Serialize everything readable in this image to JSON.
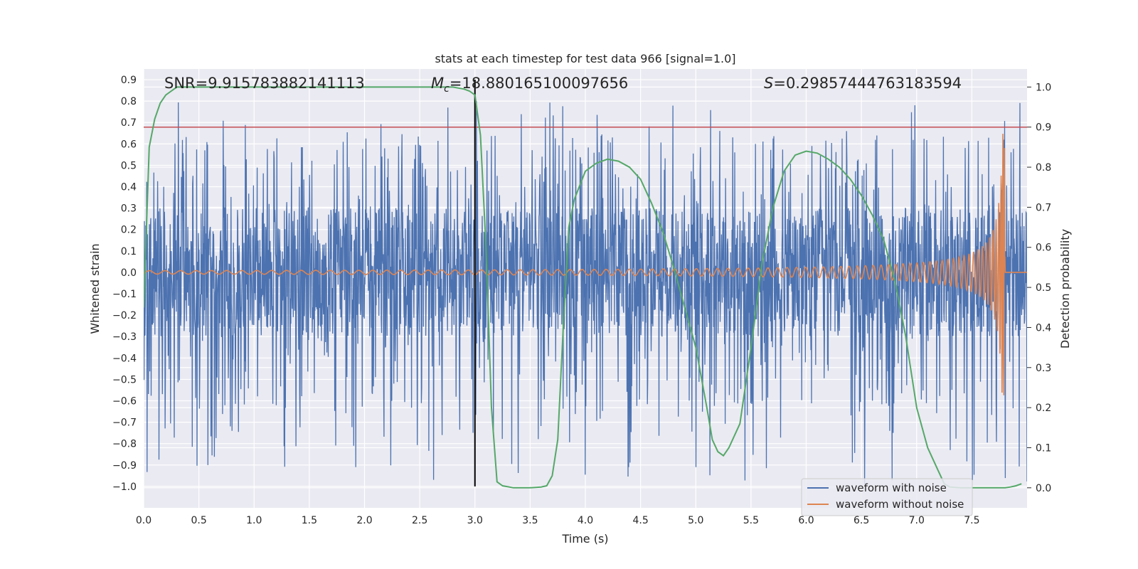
{
  "chart_data": {
    "type": "line",
    "title": "stats at each timestep for test data 966 [signal=1.0]",
    "xlabel": "Time (s)",
    "ylabel_left": "Whitened strain",
    "ylabel_right": "Detection probability",
    "xlim": [
      0.0,
      8.0
    ],
    "ylim_left": [
      -1.1,
      0.95
    ],
    "ylim_right": [
      -0.05,
      1.045
    ],
    "x_ticks": [
      "0.0",
      "0.5",
      "1.0",
      "1.5",
      "2.0",
      "2.5",
      "3.0",
      "3.5",
      "4.0",
      "4.5",
      "5.0",
      "5.5",
      "6.0",
      "6.5",
      "7.0",
      "7.5"
    ],
    "x_tick_values": [
      0.0,
      0.5,
      1.0,
      1.5,
      2.0,
      2.5,
      3.0,
      3.5,
      4.0,
      4.5,
      5.0,
      5.5,
      6.0,
      6.5,
      7.0,
      7.5
    ],
    "y_left_ticks": [
      "0.9",
      "0.8",
      "0.7",
      "0.6",
      "0.5",
      "0.4",
      "0.3",
      "0.2",
      "0.1",
      "0.0",
      "−0.1",
      "−0.2",
      "−0.3",
      "−0.4",
      "−0.5",
      "−0.6",
      "−0.7",
      "−0.8",
      "−0.9",
      "−1.0"
    ],
    "y_left_tick_values": [
      0.9,
      0.8,
      0.7,
      0.6,
      0.5,
      0.4,
      0.3,
      0.2,
      0.1,
      0.0,
      -0.1,
      -0.2,
      -0.3,
      -0.4,
      -0.5,
      -0.6,
      -0.7,
      -0.8,
      -0.9,
      -1.0
    ],
    "y_right_ticks": [
      "1.0",
      "0.9",
      "0.8",
      "0.7",
      "0.6",
      "0.5",
      "0.4",
      "0.3",
      "0.2",
      "0.1",
      "0.0"
    ],
    "y_right_tick_values": [
      1.0,
      0.9,
      0.8,
      0.7,
      0.6,
      0.5,
      0.4,
      0.3,
      0.2,
      0.1,
      0.0
    ],
    "annotations": {
      "snr": "SNR=9.915783882141113",
      "mc_symbol": "M",
      "mc_subscript": "c",
      "mc_value": "=18.880165100097656",
      "s_symbol": "S",
      "s_value": "=0.29857444763183594"
    },
    "threshold_line": {
      "axis": "right",
      "value": 0.9,
      "color": "#c44e52"
    },
    "vertical_marker": {
      "x": 3.0,
      "y_from": -1.0,
      "y_to": 0.9,
      "color": "#000000"
    },
    "series": [
      {
        "name": "waveform with noise",
        "axis": "left",
        "color": "#4c72b0",
        "kind": "noise",
        "x_range": [
          0.0,
          8.0
        ],
        "core_amplitude": 0.3,
        "peak_range": [
          -1.0,
          0.8
        ]
      },
      {
        "name": "waveform without noise",
        "axis": "left",
        "color": "#dd8452",
        "kind": "chirp",
        "x_range": [
          0.0,
          8.0
        ],
        "merger_time": 7.8,
        "start_amplitude": 0.008,
        "peak_amplitude": 0.65,
        "min_value": -0.6
      },
      {
        "name": "detection probability",
        "axis": "right",
        "color": "#55a868",
        "x": [
          0.0,
          0.05,
          0.1,
          0.15,
          0.2,
          0.25,
          0.3,
          0.35,
          0.4,
          0.5,
          1.0,
          1.5,
          2.0,
          2.5,
          2.8,
          2.9,
          2.95,
          3.0,
          3.05,
          3.1,
          3.15,
          3.2,
          3.25,
          3.35,
          3.5,
          3.6,
          3.65,
          3.7,
          3.75,
          3.8,
          3.85,
          3.9,
          4.0,
          4.1,
          4.2,
          4.3,
          4.4,
          4.5,
          4.6,
          4.7,
          4.8,
          4.9,
          5.0,
          5.1,
          5.15,
          5.2,
          5.25,
          5.3,
          5.4,
          5.5,
          5.6,
          5.7,
          5.8,
          5.9,
          6.0,
          6.1,
          6.2,
          6.3,
          6.4,
          6.5,
          6.6,
          6.7,
          6.8,
          6.9,
          7.0,
          7.1,
          7.2,
          7.25,
          7.3,
          7.4,
          7.5,
          7.6,
          7.7,
          7.8,
          7.85,
          7.9,
          7.95
        ],
        "y": [
          0.45,
          0.85,
          0.92,
          0.96,
          0.98,
          0.99,
          1.0,
          1.0,
          1.0,
          1.0,
          1.0,
          1.0,
          1.0,
          1.0,
          1.0,
          0.995,
          0.99,
          0.98,
          0.88,
          0.6,
          0.2,
          0.015,
          0.005,
          0.0,
          0.0,
          0.002,
          0.005,
          0.03,
          0.12,
          0.4,
          0.65,
          0.72,
          0.79,
          0.81,
          0.82,
          0.815,
          0.8,
          0.77,
          0.71,
          0.64,
          0.55,
          0.45,
          0.35,
          0.2,
          0.12,
          0.09,
          0.08,
          0.1,
          0.16,
          0.35,
          0.56,
          0.7,
          0.79,
          0.83,
          0.84,
          0.835,
          0.82,
          0.8,
          0.77,
          0.73,
          0.68,
          0.62,
          0.52,
          0.38,
          0.2,
          0.1,
          0.04,
          0.01,
          0.002,
          0.0,
          0.0,
          0.0,
          0.0,
          0.0,
          0.002,
          0.005,
          0.01
        ]
      }
    ],
    "legend": {
      "position": "lower-right",
      "entries": [
        {
          "label": "waveform with noise",
          "color": "#4c72b0"
        },
        {
          "label": "waveform without noise",
          "color": "#dd8452"
        }
      ]
    },
    "style": {
      "axes_bg": "#eaeaf2",
      "grid": "#ffffff"
    }
  }
}
